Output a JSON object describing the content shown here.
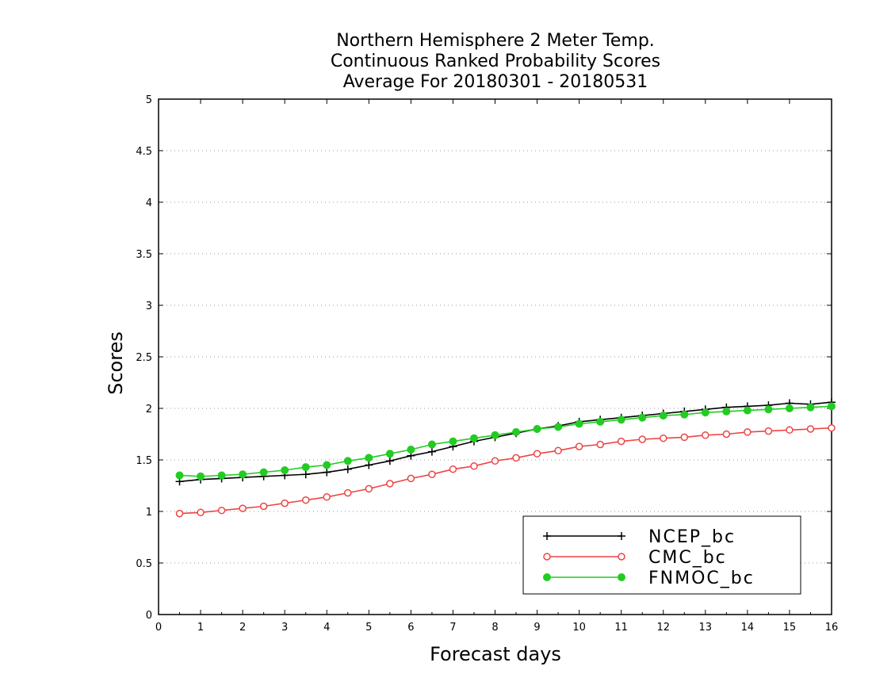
{
  "chart_data": {
    "type": "line",
    "title": [
      "Northern Hemisphere 2 Meter Temp.",
      "Continuous Ranked Probability Scores",
      "Average For 20180301 - 20180531"
    ],
    "xlabel": "Forecast days",
    "ylabel": "Scores",
    "xlim": [
      0,
      16
    ],
    "ylim": [
      0,
      5
    ],
    "xticks": [
      0,
      1,
      2,
      3,
      4,
      5,
      6,
      7,
      8,
      9,
      10,
      11,
      12,
      13,
      14,
      15,
      16
    ],
    "yticks": [
      0,
      0.5,
      1,
      1.5,
      2,
      2.5,
      3,
      3.5,
      4,
      4.5,
      5
    ],
    "ytick_labels": [
      "0",
      "0.5",
      "1",
      "1.5",
      "2",
      "2.5",
      "3",
      "3.5",
      "4",
      "4.5",
      "5"
    ],
    "grid": "horizontal dotted",
    "legend_position": "bottom-right",
    "x": [
      0.5,
      1,
      1.5,
      2,
      2.5,
      3,
      3.5,
      4,
      4.5,
      5,
      5.5,
      6,
      6.5,
      7,
      7.5,
      8,
      8.5,
      9,
      9.5,
      10,
      10.5,
      11,
      11.5,
      12,
      12.5,
      13,
      13.5,
      14,
      14.5,
      15,
      15.5,
      16
    ],
    "series": [
      {
        "name": "NCEP_bc",
        "color": "#000000",
        "marker": "plus",
        "values": [
          1.29,
          1.31,
          1.32,
          1.33,
          1.34,
          1.35,
          1.36,
          1.38,
          1.41,
          1.45,
          1.49,
          1.54,
          1.58,
          1.63,
          1.68,
          1.72,
          1.76,
          1.8,
          1.83,
          1.87,
          1.89,
          1.91,
          1.93,
          1.95,
          1.97,
          1.99,
          2.01,
          2.02,
          2.03,
          2.05,
          2.04,
          2.06
        ]
      },
      {
        "name": "CMC_bc",
        "color": "#ee4444",
        "marker": "open-circle",
        "values": [
          0.98,
          0.99,
          1.01,
          1.03,
          1.05,
          1.08,
          1.11,
          1.14,
          1.18,
          1.22,
          1.27,
          1.32,
          1.36,
          1.41,
          1.44,
          1.49,
          1.52,
          1.56,
          1.59,
          1.63,
          1.65,
          1.68,
          1.7,
          1.71,
          1.72,
          1.74,
          1.75,
          1.77,
          1.78,
          1.79,
          1.8,
          1.81
        ]
      },
      {
        "name": "FNMOC_bc",
        "color": "#22cc22",
        "marker": "filled-circle",
        "values": [
          1.35,
          1.34,
          1.35,
          1.36,
          1.38,
          1.4,
          1.43,
          1.45,
          1.49,
          1.52,
          1.56,
          1.6,
          1.65,
          1.68,
          1.71,
          1.74,
          1.77,
          1.8,
          1.82,
          1.85,
          1.87,
          1.89,
          1.91,
          1.93,
          1.94,
          1.96,
          1.97,
          1.98,
          1.99,
          2.0,
          2.01,
          2.02
        ]
      }
    ]
  }
}
